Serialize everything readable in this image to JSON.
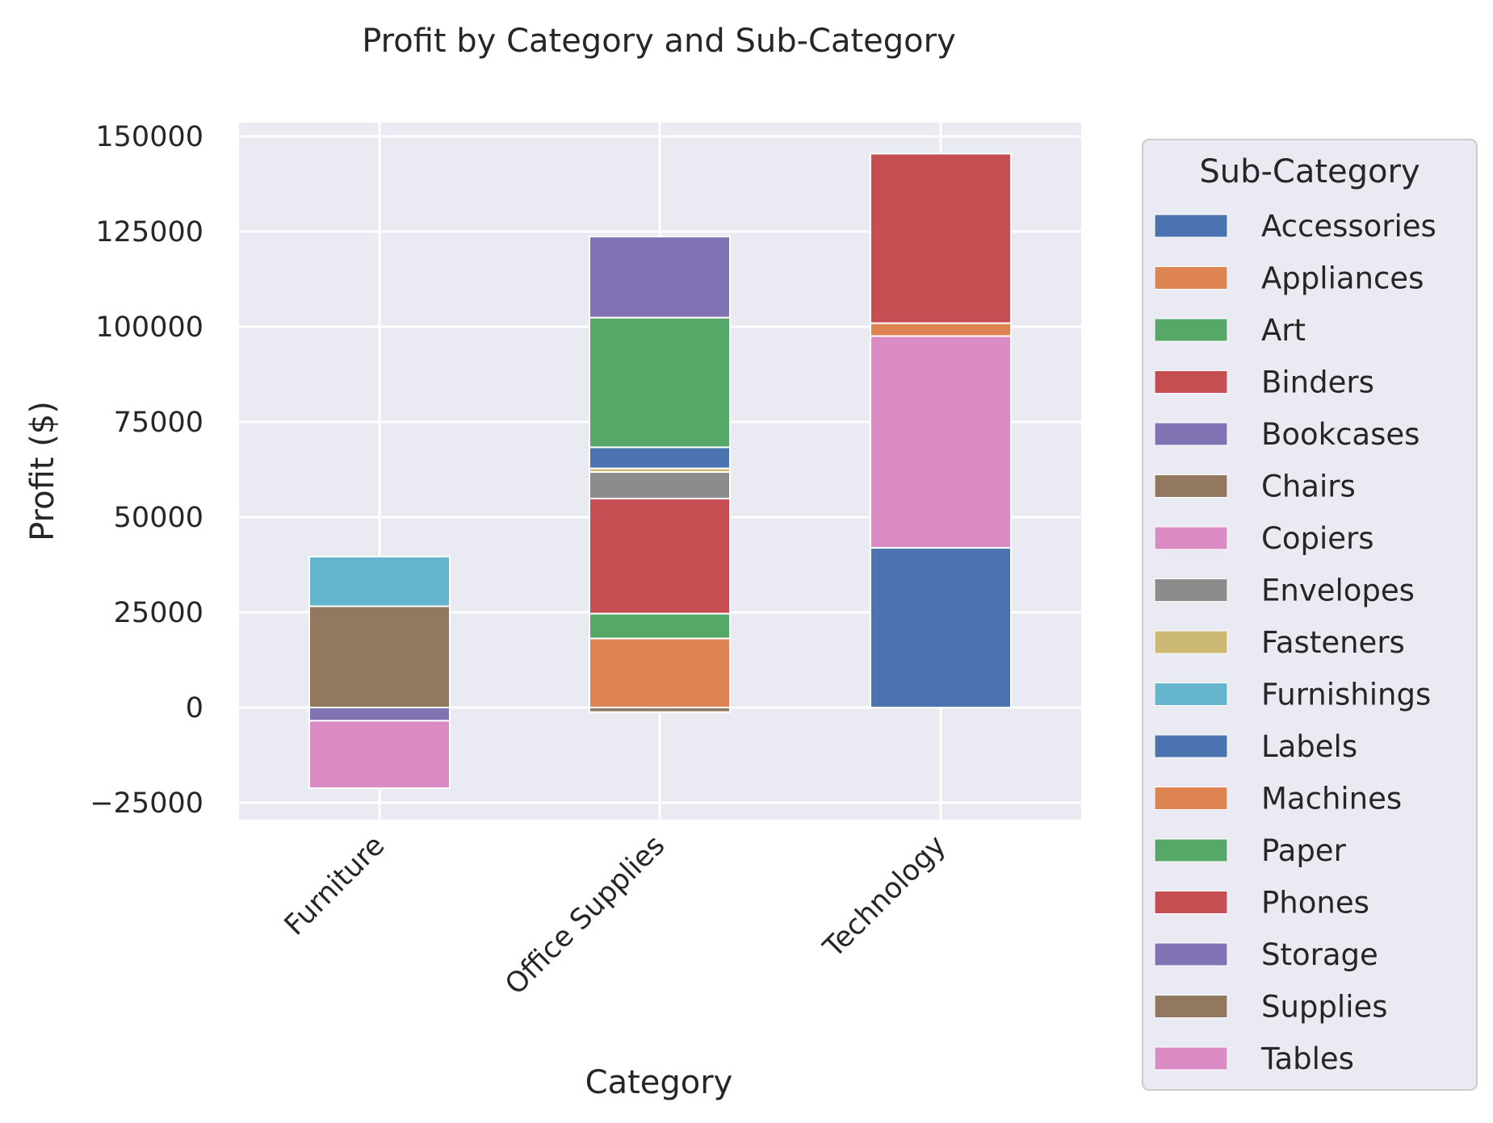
{
  "chart_data": {
    "type": "bar",
    "stacked": true,
    "title": "Profit by Category and Sub-Category",
    "xlabel": "Category",
    "ylabel": "Profit ($)",
    "ylim": [
      -29000,
      154000
    ],
    "yticks": [
      -25000,
      0,
      25000,
      50000,
      75000,
      100000,
      125000,
      150000
    ],
    "ytick_labels": [
      "−25000",
      "0",
      "25000",
      "50000",
      "75000",
      "100000",
      "125000",
      "150000"
    ],
    "categories": [
      "Furniture",
      "Office Supplies",
      "Technology"
    ],
    "grid": true,
    "legend": {
      "title": "Sub-Category",
      "placement": "right, outside plot"
    },
    "series": [
      {
        "name": "Accessories",
        "color": "#4c72b0",
        "values": [
          0,
          0,
          41937
        ]
      },
      {
        "name": "Appliances",
        "color": "#dd8452",
        "values": [
          0,
          18138,
          0
        ]
      },
      {
        "name": "Art",
        "color": "#55a868",
        "values": [
          0,
          6528,
          0
        ]
      },
      {
        "name": "Binders",
        "color": "#c44e52",
        "values": [
          0,
          30222,
          0
        ]
      },
      {
        "name": "Bookcases",
        "color": "#8172b3",
        "values": [
          -3473,
          0,
          0
        ]
      },
      {
        "name": "Chairs",
        "color": "#937860",
        "values": [
          26590,
          0,
          0
        ]
      },
      {
        "name": "Copiers",
        "color": "#da8bc3",
        "values": [
          0,
          0,
          55618
        ]
      },
      {
        "name": "Envelopes",
        "color": "#8c8c8c",
        "values": [
          0,
          6964,
          0
        ]
      },
      {
        "name": "Fasteners",
        "color": "#ccb974",
        "values": [
          0,
          950,
          0
        ]
      },
      {
        "name": "Furnishings",
        "color": "#64b5cd",
        "values": [
          13059,
          0,
          0
        ]
      },
      {
        "name": "Labels",
        "color": "#4c72b0",
        "values": [
          0,
          5546,
          0
        ]
      },
      {
        "name": "Machines",
        "color": "#dd8452",
        "values": [
          0,
          0,
          3385
        ]
      },
      {
        "name": "Paper",
        "color": "#55a868",
        "values": [
          0,
          34054,
          0
        ]
      },
      {
        "name": "Phones",
        "color": "#c44e52",
        "values": [
          0,
          0,
          44516
        ]
      },
      {
        "name": "Storage",
        "color": "#8172b3",
        "values": [
          0,
          21279,
          0
        ]
      },
      {
        "name": "Supplies",
        "color": "#937860",
        "values": [
          0,
          -1189,
          0
        ]
      },
      {
        "name": "Tables",
        "color": "#da8bc3",
        "values": [
          -17725,
          0,
          0
        ]
      }
    ],
    "background_color": "#eaeaf2"
  }
}
